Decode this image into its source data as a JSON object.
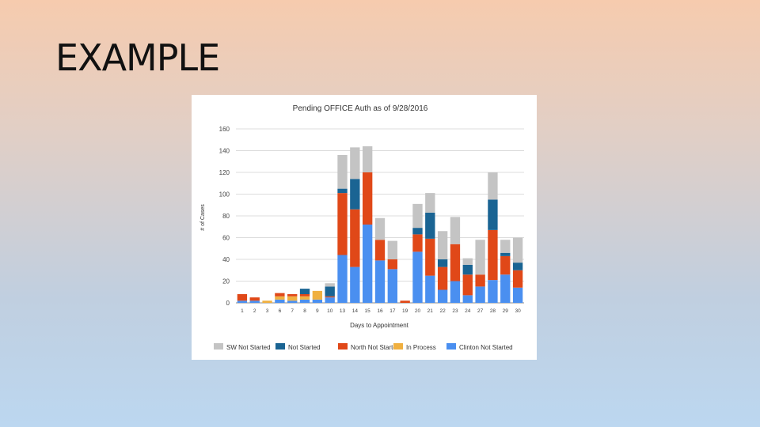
{
  "slide": {
    "title": "EXAMPLE"
  },
  "chart_data": {
    "type": "bar",
    "stacked": true,
    "title": "Pending OFFICE Auth as of 9/28/2016",
    "xlabel": "Days to Appointment",
    "ylabel": "# of Cases",
    "ylim": [
      0,
      160
    ],
    "yticks": [
      0,
      20,
      40,
      60,
      80,
      100,
      120,
      140,
      160
    ],
    "grid": true,
    "legend_position": "bottom",
    "categories": [
      "1",
      "2",
      "3",
      "6",
      "7",
      "8",
      "9",
      "10",
      "13",
      "14",
      "15",
      "16",
      "17",
      "19",
      "20",
      "21",
      "22",
      "23",
      "24",
      "27",
      "28",
      "29",
      "30"
    ],
    "series": [
      {
        "name": "Clinton Not Started",
        "color": "#4a8ff0",
        "values": [
          2,
          2,
          0,
          3,
          2,
          3,
          3,
          5,
          44,
          33,
          72,
          39,
          31,
          0,
          47,
          25,
          12,
          20,
          7,
          15,
          21,
          26,
          14
        ]
      },
      {
        "name": "In Process",
        "color": "#f0b040",
        "values": [
          0,
          0,
          2,
          3,
          4,
          3,
          8,
          0,
          0,
          0,
          0,
          0,
          0,
          0,
          0,
          0,
          0,
          0,
          0,
          0,
          0,
          0,
          0
        ]
      },
      {
        "name": "North Not Started",
        "color": "#e04818",
        "values": [
          6,
          3,
          0,
          3,
          2,
          2,
          0,
          1,
          57,
          53,
          48,
          19,
          9,
          2,
          16,
          34,
          21,
          34,
          19,
          11,
          46,
          17,
          16
        ]
      },
      {
        "name": "Not Started",
        "color": "#1a6493",
        "values": [
          0,
          0,
          0,
          0,
          0,
          5,
          0,
          9,
          4,
          28,
          0,
          0,
          0,
          0,
          6,
          24,
          7,
          0,
          9,
          0,
          28,
          3,
          7
        ]
      },
      {
        "name": "SW Not Started",
        "color": "#c4c4c4",
        "values": [
          0,
          0,
          0,
          0,
          0,
          0,
          0,
          3,
          31,
          29,
          24,
          20,
          17,
          0,
          22,
          18,
          26,
          25,
          6,
          32,
          25,
          12,
          23
        ]
      }
    ],
    "legend_order": [
      "SW Not Started",
      "Not Started",
      "North Not Started",
      "In Process",
      "Clinton Not Started"
    ]
  }
}
